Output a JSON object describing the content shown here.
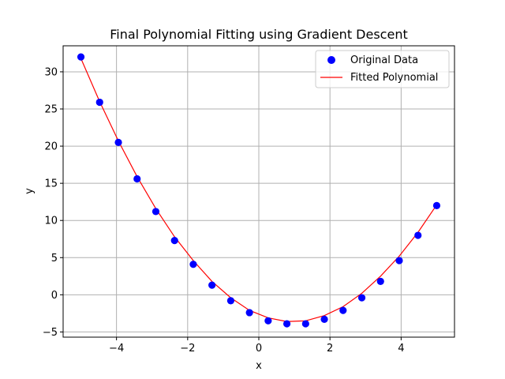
{
  "chart_data": {
    "type": "scatter",
    "title": "Final Polynomial Fitting using Gradient Descent",
    "xlabel": "x",
    "ylabel": "y",
    "xlim": [
      -5.5,
      5.5
    ],
    "ylim": [
      -5.7,
      33.5
    ],
    "xticks": [
      -4,
      -2,
      0,
      2,
      4
    ],
    "xtick_labels": [
      "−4",
      "−2",
      "0",
      "2",
      "4"
    ],
    "yticks": [
      -5,
      0,
      5,
      10,
      15,
      20,
      25,
      30
    ],
    "ytick_labels": [
      "−5",
      "0",
      "5",
      "10",
      "15",
      "20",
      "25",
      "30"
    ],
    "grid": true,
    "legend_position": "top-right",
    "series": [
      {
        "name": "Original Data",
        "kind": "scatter",
        "color": "#0000ff",
        "x": [
          -5.0,
          -4.474,
          -3.947,
          -3.421,
          -2.895,
          -2.368,
          -1.842,
          -1.316,
          -0.789,
          -0.263,
          0.263,
          0.789,
          1.316,
          1.842,
          2.368,
          2.895,
          3.421,
          3.947,
          4.474,
          5.0
        ],
        "y": [
          32.0,
          25.9,
          20.5,
          15.6,
          11.2,
          7.3,
          4.1,
          1.3,
          -0.8,
          -2.4,
          -3.5,
          -3.9,
          -3.9,
          -3.3,
          -2.1,
          -0.4,
          1.8,
          4.6,
          8.0,
          12.0
        ]
      },
      {
        "name": "Fitted Polynomial",
        "kind": "line",
        "color": "#ff0000",
        "x": [
          -5.0,
          -4.474,
          -3.947,
          -3.421,
          -2.895,
          -2.368,
          -1.842,
          -1.316,
          -0.789,
          -0.263,
          0.263,
          0.789,
          1.316,
          1.842,
          2.368,
          2.895,
          3.421,
          3.947,
          4.474,
          5.0
        ],
        "y": [
          31.8,
          26.0,
          20.7,
          15.9,
          11.6,
          7.8,
          4.6,
          1.8,
          -0.4,
          -2.1,
          -3.1,
          -3.6,
          -3.5,
          -2.8,
          -1.6,
          0.2,
          2.5,
          5.2,
          8.4,
          12.1
        ]
      }
    ]
  }
}
